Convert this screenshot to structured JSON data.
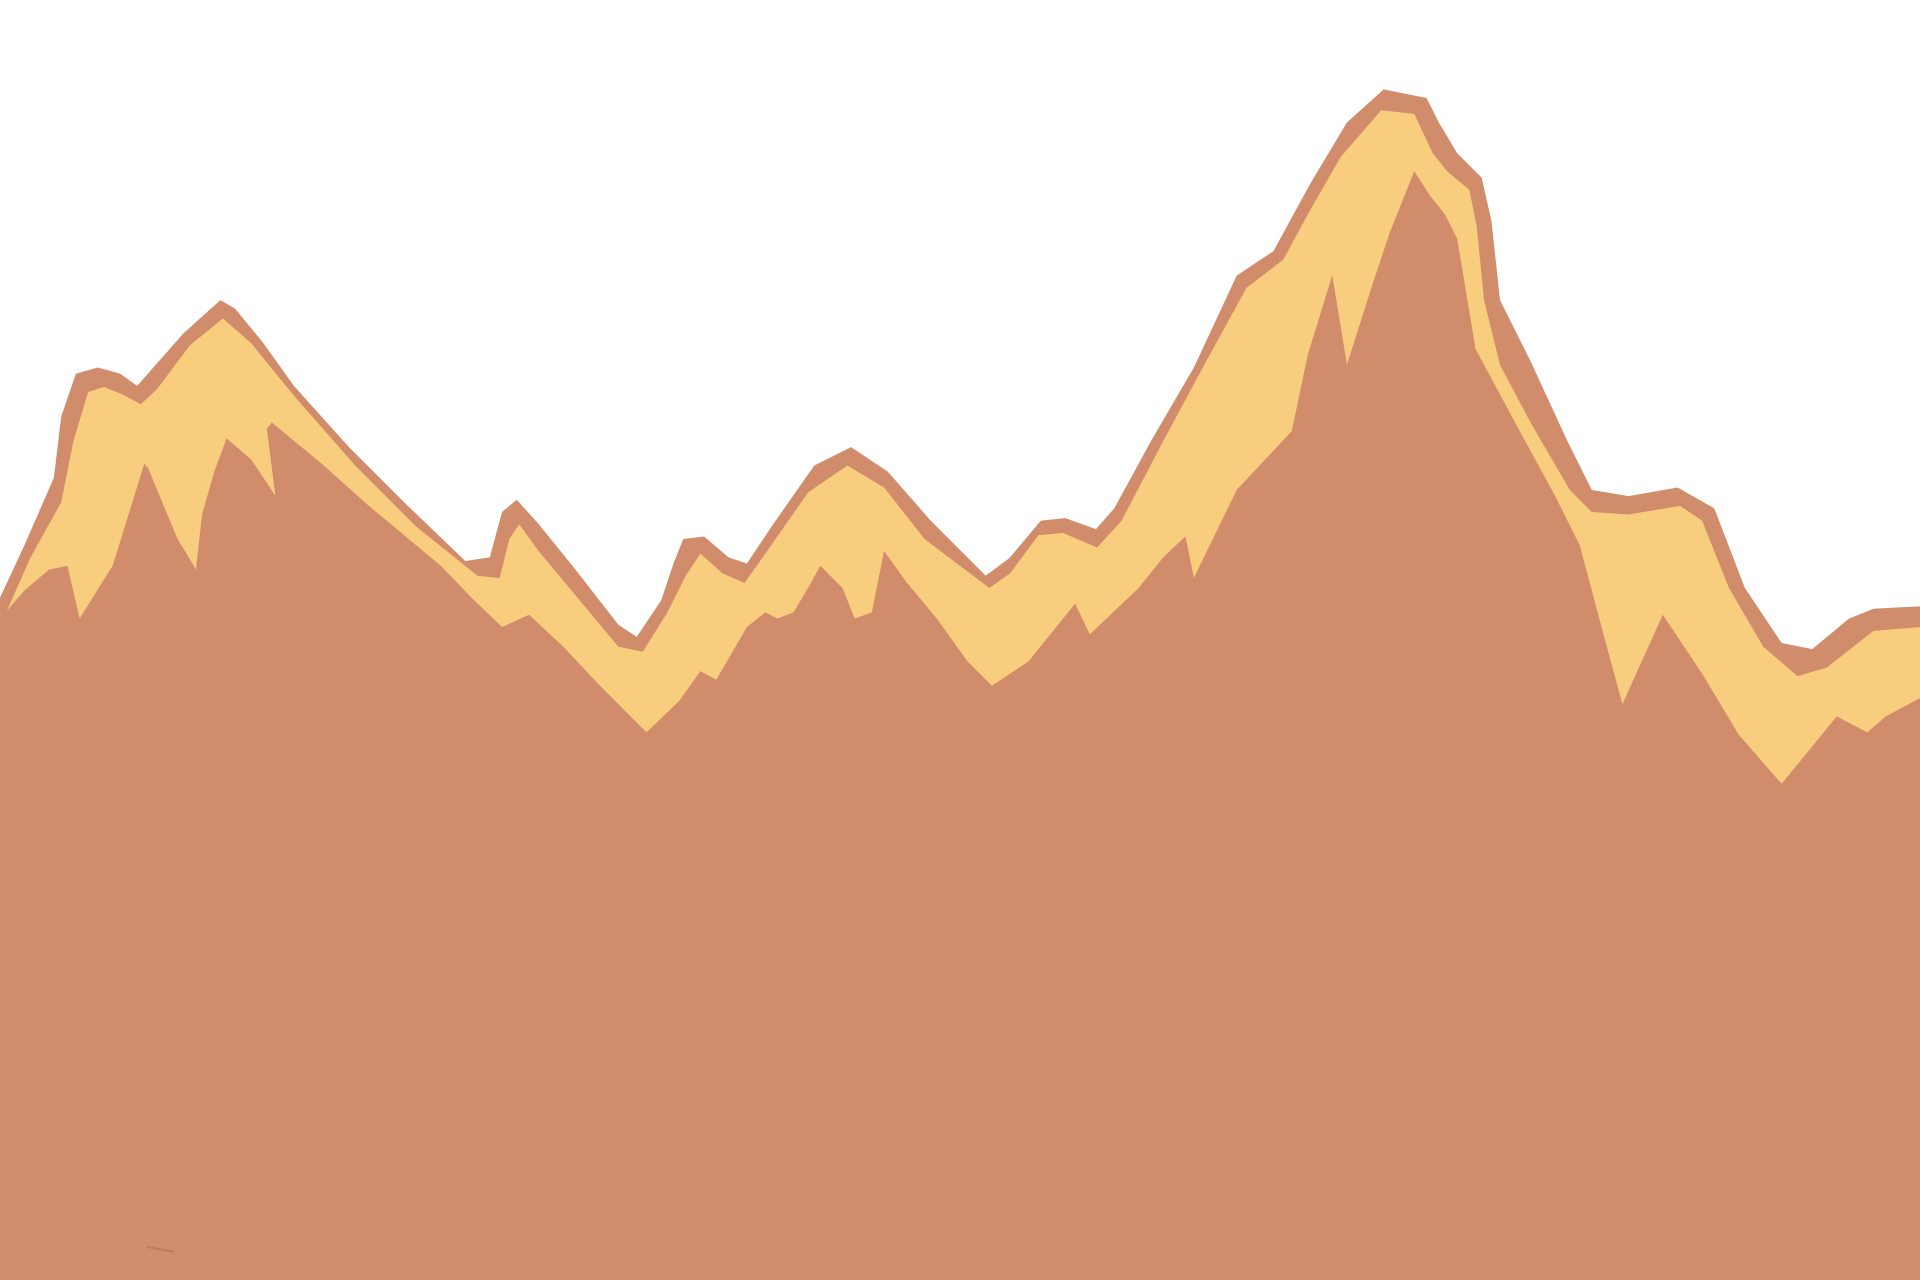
{
  "scene": {
    "subject": "mountain-range-illustration",
    "colors": {
      "sky": "#ffffff",
      "mountain_body": "#d18c6b",
      "snow_cap": "#f8cd7e",
      "outline": "#d18c6b"
    }
  }
}
